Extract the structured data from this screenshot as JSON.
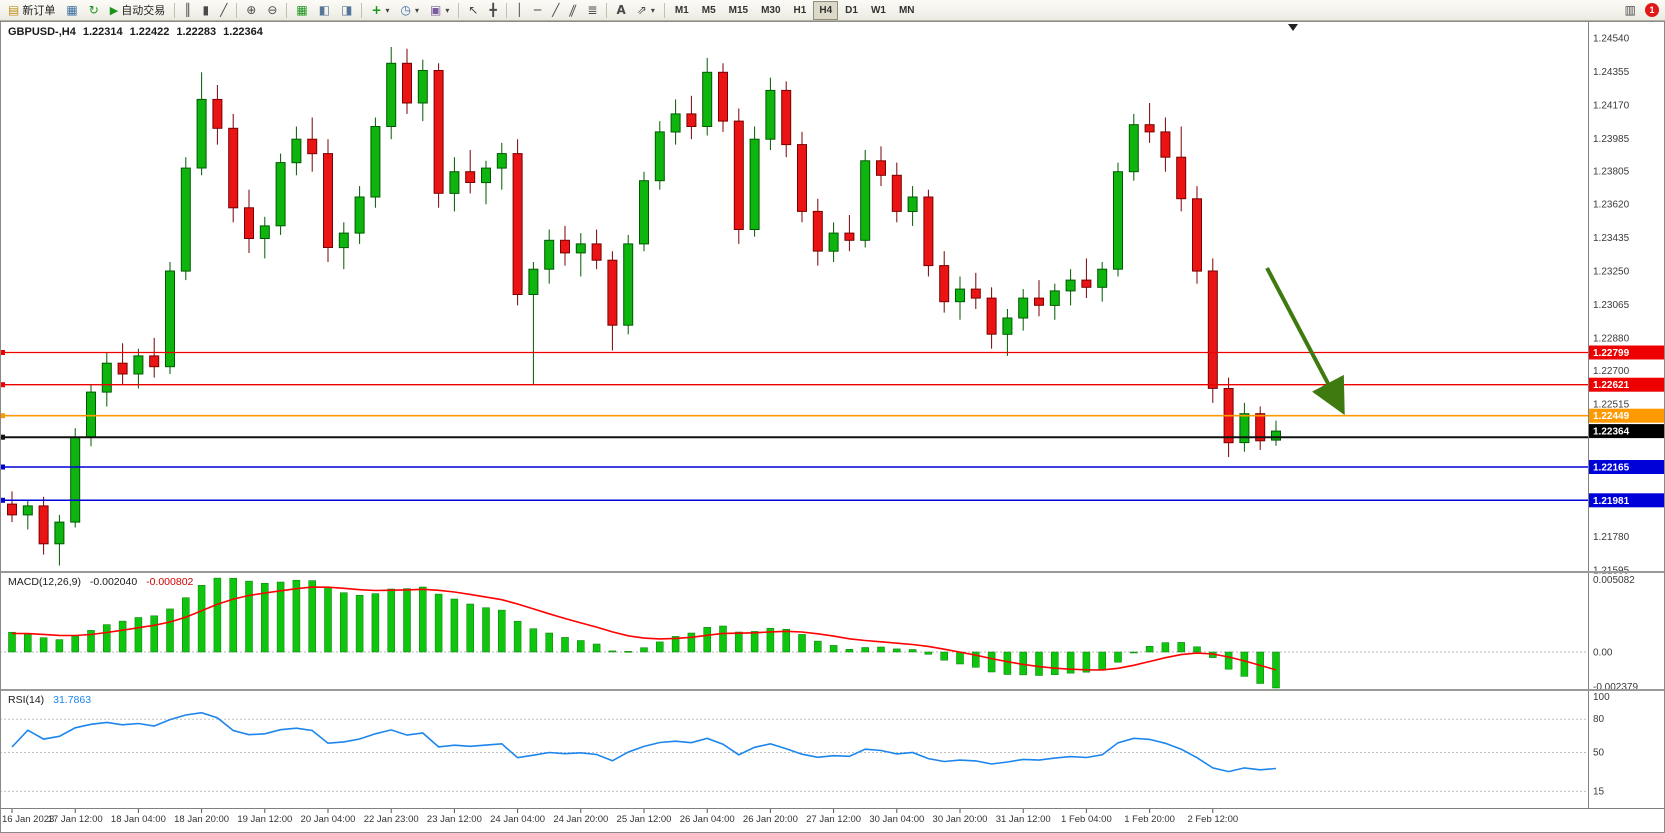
{
  "toolbar": {
    "new_order_label": "新订单",
    "auto_trading_label": "自动交易",
    "timeframes": [
      "M1",
      "M5",
      "M15",
      "M30",
      "H1",
      "H4",
      "D1",
      "W1",
      "MN"
    ],
    "active_timeframe": "H4",
    "notification_badge": "1"
  },
  "icons": {
    "new_order": "▤",
    "charts": "▦",
    "profiles": "↻",
    "auto_play": "▶",
    "bars": "║",
    "candles": "▮",
    "line_chart": "╱",
    "zoom_in": "⊕",
    "zoom_out": "⊖",
    "tile": "▦",
    "cascade": "◧",
    "arrange": "◨",
    "indicators": "+",
    "clock": "◷",
    "templates": "▣",
    "cursor": "↖",
    "crosshair": "╋",
    "vline": "│",
    "hline": "─",
    "trendline": "╱",
    "channel": "∥",
    "fibo": "≣",
    "text": "A",
    "arrows": "⇗",
    "caret": "▾",
    "alerts": "▥",
    "shift_marker": "▼"
  },
  "main_header": {
    "title": "GBPUSD-,H4",
    "open": "1.22314",
    "high": "1.22422",
    "low": "1.22283",
    "close": "1.22364"
  },
  "chart_data": {
    "type": "candlestick",
    "title": "GBPUSD-,H4",
    "timeframe": "H4",
    "current_bar": {
      "open": 1.22314,
      "high": 1.22422,
      "low": 1.22283,
      "close": 1.22364
    },
    "y_axis": {
      "min": 1.21595,
      "max": 1.2454,
      "labels": [
        "1.24540",
        "1.24355",
        "1.24170",
        "1.23985",
        "1.23805",
        "1.23620",
        "1.23435",
        "1.23250",
        "1.23065",
        "1.22880",
        "1.22700",
        "1.22515",
        "1.21780",
        "1.21595"
      ]
    },
    "x_labels": [
      "16 Jan 2023",
      "17 Jan 12:00",
      "18 Jan 04:00",
      "18 Jan 20:00",
      "19 Jan 12:00",
      "20 Jan 04:00",
      "22 Jan 23:00",
      "23 Jan 12:00",
      "24 Jan 04:00",
      "24 Jan 20:00",
      "25 Jan 12:00",
      "26 Jan 04:00",
      "26 Jan 20:00",
      "27 Jan 12:00",
      "30 Jan 04:00",
      "30 Jan 20:00",
      "31 Jan 12:00",
      "1 Feb 04:00",
      "1 Feb 20:00",
      "2 Feb 12:00"
    ],
    "x_label_interval": 4,
    "colors": {
      "up": "#0fb50f",
      "down": "#ea1414",
      "up_border": "#005a00",
      "down_border": "#7a0000",
      "background": "#ffffff"
    },
    "candles": [
      [
        1.2196,
        1.2203,
        1.2186,
        1.219
      ],
      [
        1.219,
        1.2198,
        1.2182,
        1.2195
      ],
      [
        1.2195,
        1.22,
        1.2168,
        1.2174
      ],
      [
        1.2174,
        1.219,
        1.2162,
        1.2186
      ],
      [
        1.2186,
        1.2238,
        1.2183,
        1.2233
      ],
      [
        1.2233,
        1.2262,
        1.2228,
        1.2258
      ],
      [
        1.2258,
        1.228,
        1.225,
        1.2274
      ],
      [
        1.2274,
        1.2285,
        1.2262,
        1.2268
      ],
      [
        1.2268,
        1.2282,
        1.226,
        1.2278
      ],
      [
        1.2278,
        1.2288,
        1.2266,
        1.2272
      ],
      [
        1.2272,
        1.233,
        1.2268,
        1.2325
      ],
      [
        1.2325,
        1.2388,
        1.232,
        1.2382
      ],
      [
        1.2382,
        1.2435,
        1.2378,
        1.242
      ],
      [
        1.242,
        1.2428,
        1.2395,
        1.2404
      ],
      [
        1.2404,
        1.2412,
        1.2352,
        1.236
      ],
      [
        1.236,
        1.237,
        1.2335,
        1.2343
      ],
      [
        1.2343,
        1.2355,
        1.2332,
        1.235
      ],
      [
        1.235,
        1.239,
        1.2345,
        1.2385
      ],
      [
        1.2385,
        1.2405,
        1.2378,
        1.2398
      ],
      [
        1.2398,
        1.241,
        1.238,
        1.239
      ],
      [
        1.239,
        1.2398,
        1.233,
        1.2338
      ],
      [
        1.2338,
        1.2352,
        1.2326,
        1.2346
      ],
      [
        1.2346,
        1.2372,
        1.234,
        1.2366
      ],
      [
        1.2366,
        1.241,
        1.236,
        1.2405
      ],
      [
        1.2405,
        1.2449,
        1.2398,
        1.244
      ],
      [
        1.244,
        1.2448,
        1.2412,
        1.2418
      ],
      [
        1.2418,
        1.2442,
        1.2408,
        1.2436
      ],
      [
        1.2436,
        1.244,
        1.236,
        1.2368
      ],
      [
        1.2368,
        1.2388,
        1.2358,
        1.238
      ],
      [
        1.238,
        1.2392,
        1.2368,
        1.2374
      ],
      [
        1.2374,
        1.2386,
        1.2362,
        1.2382
      ],
      [
        1.2382,
        1.2396,
        1.237,
        1.239
      ],
      [
        1.239,
        1.2398,
        1.2306,
        1.2312
      ],
      [
        1.2312,
        1.233,
        1.2262,
        1.2326
      ],
      [
        1.2326,
        1.2348,
        1.2318,
        1.2342
      ],
      [
        1.2342,
        1.235,
        1.2328,
        1.2335
      ],
      [
        1.2335,
        1.2346,
        1.2322,
        1.234
      ],
      [
        1.234,
        1.2348,
        1.2326,
        1.2331
      ],
      [
        1.2331,
        1.2336,
        1.2281,
        1.2295
      ],
      [
        1.2295,
        1.2345,
        1.229,
        1.234
      ],
      [
        1.234,
        1.238,
        1.2336,
        1.2375
      ],
      [
        1.2375,
        1.2408,
        1.237,
        1.2402
      ],
      [
        1.2402,
        1.242,
        1.2395,
        1.2412
      ],
      [
        1.2412,
        1.2422,
        1.2398,
        1.2405
      ],
      [
        1.2405,
        1.2443,
        1.24,
        1.2435
      ],
      [
        1.2435,
        1.244,
        1.2402,
        1.2408
      ],
      [
        1.2408,
        1.2415,
        1.234,
        1.2348
      ],
      [
        1.2348,
        1.2405,
        1.2344,
        1.2398
      ],
      [
        1.2398,
        1.2432,
        1.2392,
        1.2425
      ],
      [
        1.2425,
        1.243,
        1.2388,
        1.2395
      ],
      [
        1.2395,
        1.2402,
        1.2352,
        1.2358
      ],
      [
        1.2358,
        1.2365,
        1.2328,
        1.2336
      ],
      [
        1.2336,
        1.2352,
        1.233,
        1.2346
      ],
      [
        1.2346,
        1.2356,
        1.2336,
        1.2342
      ],
      [
        1.2342,
        1.2392,
        1.2338,
        1.2386
      ],
      [
        1.2386,
        1.2394,
        1.2372,
        1.2378
      ],
      [
        1.2378,
        1.2385,
        1.2352,
        1.2358
      ],
      [
        1.2358,
        1.2372,
        1.235,
        1.2366
      ],
      [
        1.2366,
        1.237,
        1.2322,
        1.2328
      ],
      [
        1.2328,
        1.2336,
        1.2302,
        1.2308
      ],
      [
        1.2308,
        1.2322,
        1.2298,
        1.2315
      ],
      [
        1.2315,
        1.2324,
        1.2304,
        1.231
      ],
      [
        1.231,
        1.2316,
        1.2282,
        1.229
      ],
      [
        1.229,
        1.2304,
        1.2278,
        1.2299
      ],
      [
        1.2299,
        1.2315,
        1.2292,
        1.231
      ],
      [
        1.231,
        1.232,
        1.23,
        1.2306
      ],
      [
        1.2306,
        1.2318,
        1.2298,
        1.2314
      ],
      [
        1.2314,
        1.2326,
        1.2306,
        1.232
      ],
      [
        1.232,
        1.2332,
        1.231,
        1.2316
      ],
      [
        1.2316,
        1.233,
        1.2308,
        1.2326
      ],
      [
        1.2326,
        1.2385,
        1.2322,
        1.238
      ],
      [
        1.238,
        1.2412,
        1.2375,
        1.2406
      ],
      [
        1.2406,
        1.2418,
        1.2396,
        1.2402
      ],
      [
        1.2402,
        1.241,
        1.238,
        1.2388
      ],
      [
        1.2388,
        1.2405,
        1.2358,
        1.2365
      ],
      [
        1.2365,
        1.2372,
        1.2318,
        1.2325
      ],
      [
        1.2325,
        1.2332,
        1.2252,
        1.226
      ],
      [
        1.226,
        1.2266,
        1.2222,
        1.223
      ],
      [
        1.223,
        1.2252,
        1.2225,
        1.2246
      ],
      [
        1.2246,
        1.225,
        1.2226,
        1.2231
      ],
      [
        1.22314,
        1.22422,
        1.22283,
        1.22364
      ]
    ],
    "hlines": [
      {
        "price": 1.22799,
        "label": "1.22799",
        "color": "#ee0000",
        "width": 1.3
      },
      {
        "price": 1.22621,
        "label": "1.22621",
        "color": "#ee0000",
        "width": 1.3
      },
      {
        "price": 1.22449,
        "label": "1.22449",
        "color": "#ff9900",
        "width": 1.6
      },
      {
        "price": 1.2233,
        "label": "",
        "color": "#111111",
        "width": 2
      },
      {
        "price": 1.22165,
        "label": "1.22165",
        "color": "#0000d8",
        "width": 1.5
      },
      {
        "price": 1.21981,
        "label": "1.21981",
        "color": "#0000d8",
        "width": 1.5
      }
    ],
    "bid_tag": {
      "price": 1.22364,
      "label": "1.22364",
      "color": "#000000"
    },
    "arrow_annotation": {
      "from": [
        1267,
        268
      ],
      "to": [
        1341,
        408
      ],
      "color": "#3f7a10"
    },
    "macd": {
      "label": "MACD(12,26,9)",
      "value": "-0.002040",
      "signal": "-0.000802",
      "params": [
        12,
        26,
        9
      ],
      "axis_labels": [
        "0.005082",
        "0.00",
        "-0.002379"
      ],
      "histogram_color": "#0ec60e",
      "signal_color": "#ff0000"
    },
    "rsi": {
      "label": "RSI(14)",
      "value": "31.7863",
      "period": 14,
      "levels": [
        80,
        50,
        15
      ],
      "axis_labels": [
        "100",
        "80",
        "50",
        "15"
      ],
      "line_color": "#1c86ee"
    }
  }
}
